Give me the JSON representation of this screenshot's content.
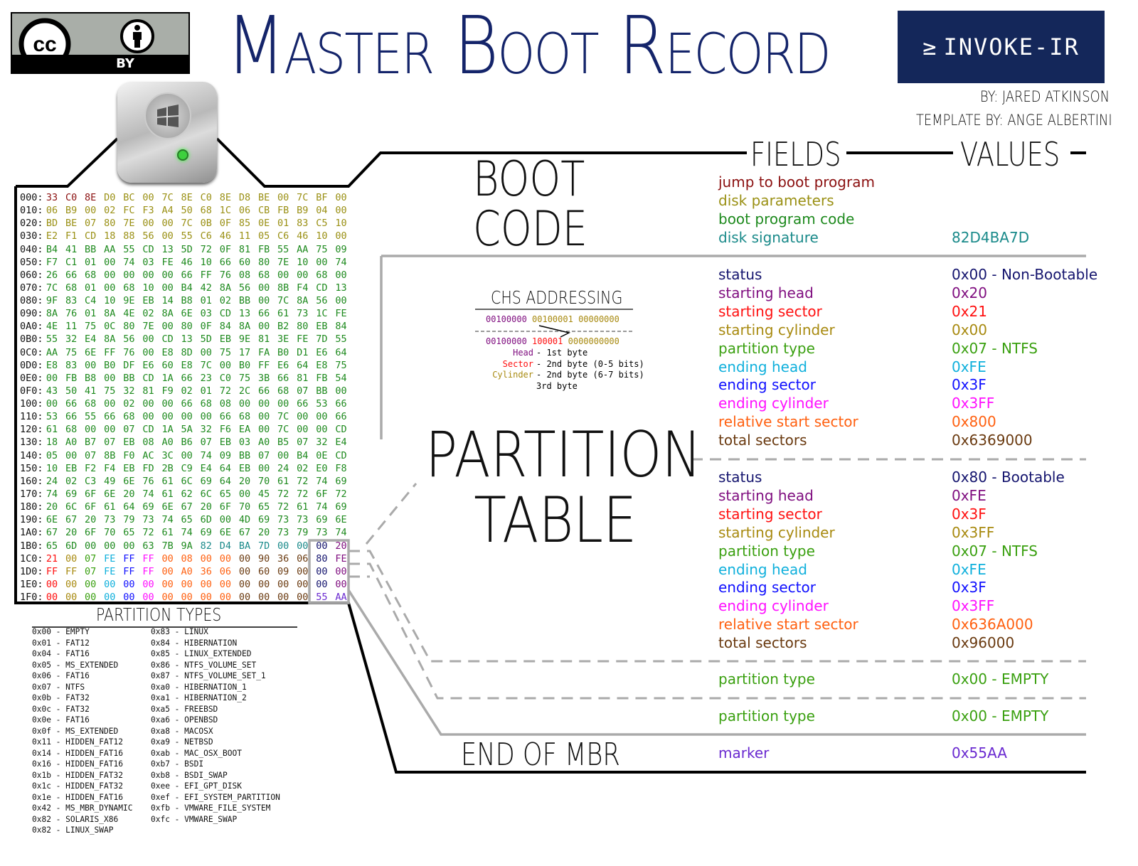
{
  "header": {
    "title_parts": [
      {
        "cap": "M",
        "rest": "ASTER"
      },
      {
        "cap": "B",
        "rest": "OOT"
      },
      {
        "cap": "R",
        "rest": "ECORD"
      }
    ],
    "logo_text": "INVOKE-IR",
    "logo_prompt": "≥",
    "author": "BY: JARED ATKINSON",
    "template_credit": "TEMPLATE BY: ANGE ALBERTINI",
    "license_badge": {
      "label": "BY",
      "icons": [
        "cc-icon",
        "attribution-person-icon"
      ]
    },
    "brand_color": "#14275a",
    "title_color": "#14246a"
  },
  "columns": {
    "fields": "FIELDS",
    "values": "VALUES"
  },
  "sections": {
    "boot_code": [
      "BOOT",
      "CODE"
    ],
    "partition_table": [
      "PARTITION",
      "TABLE"
    ],
    "end": "END OF MBR"
  },
  "colors": {
    "jump": "#8b1010",
    "disk_params": "#9a9014",
    "boot_code": "#1e8a1e",
    "signature": "#1a8a8a",
    "status": "#14146e",
    "start_head": "#800f80",
    "start_sector": "#ff1010",
    "start_cyl": "#a88a10",
    "type": "#3aa010",
    "end_head": "#10b0dc",
    "end_sector": "#1010ff",
    "end_cyl": "#ff10ff",
    "rel_start": "#ff6010",
    "total": "#6a3a10",
    "marker": "#6a2ad0"
  },
  "boot_fields": [
    {
      "label": "jump to boot program",
      "value": "",
      "color": "jump"
    },
    {
      "label": "disk parameters",
      "value": "",
      "color": "disk_params"
    },
    {
      "label": "boot program code",
      "value": "",
      "color": "boot_code"
    },
    {
      "label": "disk signature",
      "value": "82D4BA7D",
      "color": "signature"
    }
  ],
  "partitions": [
    [
      {
        "label": "status",
        "value": "0x00 - Non-Bootable",
        "color": "status"
      },
      {
        "label": "starting head",
        "value": "0x20",
        "color": "start_head"
      },
      {
        "label": "starting sector",
        "value": "0x21",
        "color": "start_sector"
      },
      {
        "label": "starting cylinder",
        "value": "0x00",
        "color": "start_cyl"
      },
      {
        "label": "partition type",
        "value": "0x07 - NTFS",
        "color": "type"
      },
      {
        "label": "ending head",
        "value": "0xFE",
        "color": "end_head"
      },
      {
        "label": "ending sector",
        "value": "0x3F",
        "color": "end_sector"
      },
      {
        "label": "ending cylinder",
        "value": "0x3FF",
        "color": "end_cyl"
      },
      {
        "label": "relative start sector",
        "value": "0x800",
        "color": "rel_start"
      },
      {
        "label": "total sectors",
        "value": "0x6369000",
        "color": "total"
      }
    ],
    [
      {
        "label": "status",
        "value": "0x80 - Bootable",
        "color": "status"
      },
      {
        "label": "starting head",
        "value": "0xFE",
        "color": "start_head"
      },
      {
        "label": "starting sector",
        "value": "0x3F",
        "color": "start_sector"
      },
      {
        "label": "starting cylinder",
        "value": "0x3FF",
        "color": "start_cyl"
      },
      {
        "label": "partition type",
        "value": "0x07 - NTFS",
        "color": "type"
      },
      {
        "label": "ending head",
        "value": "0xFE",
        "color": "end_head"
      },
      {
        "label": "ending sector",
        "value": "0x3F",
        "color": "end_sector"
      },
      {
        "label": "ending cylinder",
        "value": "0x3FF",
        "color": "end_cyl"
      },
      {
        "label": "relative start sector",
        "value": "0x636A000",
        "color": "rel_start"
      },
      {
        "label": "total sectors",
        "value": "0x96000",
        "color": "total"
      }
    ],
    [
      {
        "label": "partition type",
        "value": "0x00 - EMPTY",
        "color": "type"
      }
    ],
    [
      {
        "label": "partition type",
        "value": "0x00 - EMPTY",
        "color": "type"
      }
    ]
  ],
  "end_fields": [
    {
      "label": "marker",
      "value": "0x55AA",
      "color": "marker"
    }
  ],
  "hexdump": [
    {
      "offset": "000:",
      "bytes": "33 C0 8E D0 BC 00 7C 8E C0 8E D8 BE 00 7C BF 00"
    },
    {
      "offset": "010:",
      "bytes": "06 B9 00 02 FC F3 A4 50 68 1C 06 CB FB B9 04 00"
    },
    {
      "offset": "020:",
      "bytes": "BD BE 07 80 7E 00 00 7C 0B 0F 85 0E 01 83 C5 10"
    },
    {
      "offset": "030:",
      "bytes": "E2 F1 CD 18 88 56 00 55 C6 46 11 05 C6 46 10 00"
    },
    {
      "offset": "040:",
      "bytes": "B4 41 BB AA 55 CD 13 5D 72 0F 81 FB 55 AA 75 09"
    },
    {
      "offset": "050:",
      "bytes": "F7 C1 01 00 74 03 FE 46 10 66 60 80 7E 10 00 74"
    },
    {
      "offset": "060:",
      "bytes": "26 66 68 00 00 00 00 66 FF 76 08 68 00 00 68 00"
    },
    {
      "offset": "070:",
      "bytes": "7C 68 01 00 68 10 00 B4 42 8A 56 00 8B F4 CD 13"
    },
    {
      "offset": "080:",
      "bytes": "9F 83 C4 10 9E EB 14 B8 01 02 BB 00 7C 8A 56 00"
    },
    {
      "offset": "090:",
      "bytes": "8A 76 01 8A 4E 02 8A 6E 03 CD 13 66 61 73 1C FE"
    },
    {
      "offset": "0A0:",
      "bytes": "4E 11 75 0C 80 7E 00 80 0F 84 8A 00 B2 80 EB 84"
    },
    {
      "offset": "0B0:",
      "bytes": "55 32 E4 8A 56 00 CD 13 5D EB 9E 81 3E FE 7D 55"
    },
    {
      "offset": "0C0:",
      "bytes": "AA 75 6E FF 76 00 E8 8D 00 75 17 FA B0 D1 E6 64"
    },
    {
      "offset": "0D0:",
      "bytes": "E8 83 00 B0 DF E6 60 E8 7C 00 B0 FF E6 64 E8 75"
    },
    {
      "offset": "0E0:",
      "bytes": "00 FB B8 00 BB CD 1A 66 23 C0 75 3B 66 81 FB 54"
    },
    {
      "offset": "0F0:",
      "bytes": "43 50 41 75 32 81 F9 02 01 72 2C 66 68 07 BB 00"
    },
    {
      "offset": "100:",
      "bytes": "00 66 68 00 02 00 00 66 68 08 00 00 00 66 53 66"
    },
    {
      "offset": "110:",
      "bytes": "53 66 55 66 68 00 00 00 00 66 68 00 7C 00 00 66"
    },
    {
      "offset": "120:",
      "bytes": "61 68 00 00 07 CD 1A 5A 32 F6 EA 00 7C 00 00 CD"
    },
    {
      "offset": "130:",
      "bytes": "18 A0 B7 07 EB 08 A0 B6 07 EB 03 A0 B5 07 32 E4"
    },
    {
      "offset": "140:",
      "bytes": "05 00 07 8B F0 AC 3C 00 74 09 BB 07 00 B4 0E CD"
    },
    {
      "offset": "150:",
      "bytes": "10 EB F2 F4 EB FD 2B C9 E4 64 EB 00 24 02 E0 F8"
    },
    {
      "offset": "160:",
      "bytes": "24 02 C3 49 6E 76 61 6C 69 64 20 70 61 72 74 69"
    },
    {
      "offset": "170:",
      "bytes": "74 69 6F 6E 20 74 61 62 6C 65 00 45 72 72 6F 72"
    },
    {
      "offset": "180:",
      "bytes": "20 6C 6F 61 64 69 6E 67 20 6F 70 65 72 61 74 69"
    },
    {
      "offset": "190:",
      "bytes": "6E 67 20 73 79 73 74 65 6D 00 4D 69 73 73 69 6E"
    },
    {
      "offset": "1A0:",
      "bytes": "67 20 6F 70 65 72 61 74 69 6E 67 20 73 79 73 74"
    },
    {
      "offset": "1B0:",
      "bytes": "65 6D 00 00 00 63 7B 9A 82 D4 BA 7D 00 00 00 20"
    },
    {
      "offset": "1C0:",
      "bytes": "21 00 07 FE FF FF 00 08 00 00 00 90 36 06 80 FE"
    },
    {
      "offset": "1D0:",
      "bytes": "FF FF 07 FE FF FF 00 A0 36 06 00 60 09 00 00 00"
    },
    {
      "offset": "1E0:",
      "bytes": "00 00 00 00 00 00 00 00 00 00 00 00 00 00 00 00"
    },
    {
      "offset": "1F0:",
      "bytes": "00 00 00 00 00 00 00 00 00 00 00 00 00 00 55 AA"
    }
  ],
  "chs": {
    "title": "CHS ADDRESSING",
    "raw": [
      "00100000",
      "00100001",
      "00000000"
    ],
    "decoded": [
      "00100000",
      "100001",
      "0000000000"
    ],
    "legend": [
      {
        "name": "Head",
        "desc": "1st byte",
        "color": "start_head"
      },
      {
        "name": "Sector",
        "desc": "2nd byte (0-5 bits)",
        "color": "start_sector"
      },
      {
        "name": "Cylinder",
        "desc": "2nd byte (6-7 bits)",
        "color": "start_cyl"
      },
      {
        "name": "",
        "desc": "3rd byte",
        "color": ""
      }
    ]
  },
  "partition_types": {
    "title": "PARTITION TYPES",
    "left": [
      "0x00 - EMPTY",
      "0x01 - FAT12",
      "0x04 - FAT16",
      "0x05 - MS_EXTENDED",
      "0x06 - FAT16",
      "0x07 - NTFS",
      "0x0b - FAT32",
      "0x0c - FAT32",
      "0x0e - FAT16",
      "0x0f - MS_EXTENDED",
      "0x11 - HIDDEN_FAT12",
      "0x14 - HIDDEN_FAT16",
      "0x16 - HIDDEN_FAT16",
      "0x1b - HIDDEN_FAT32",
      "0x1c - HIDDEN_FAT32",
      "0x1e - HIDDEN_FAT16",
      "0x42 - MS_MBR_DYNAMIC",
      "0x82 - SOLARIS_X86",
      "0x82 - LINUX_SWAP"
    ],
    "right": [
      "0x83 - LINUX",
      "0x84 - HIBERNATION",
      "0x85 - LINUX_EXTENDED",
      "0x86 - NTFS_VOLUME_SET",
      "0x87 - NTFS_VOLUME_SET_1",
      "0xa0 - HIBERNATION_1",
      "0xa1 - HIBERNATION_2",
      "0xa5 - FREEBSD",
      "0xa6 - OPENBSD",
      "0xa8 - MACOSX",
      "0xa9 - NETBSD",
      "0xab - MAC_OSX_BOOT",
      "0xb7 - BSDI",
      "0xb8 - BSDI_SWAP",
      "0xee - EFI_GPT_DISK",
      "0xef - EFI_SYSTEM_PARTITION",
      "0xfb - VMWARE_FILE_SYSTEM",
      "0xfc - VMWARE_SWAP"
    ]
  }
}
